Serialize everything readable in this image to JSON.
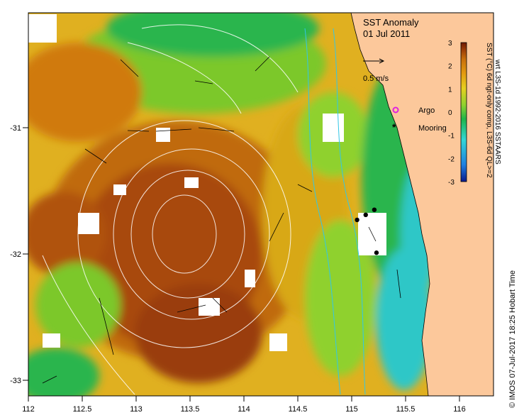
{
  "title": {
    "line1": "SST Anomaly",
    "line2": "01 Jul 2011"
  },
  "scale": {
    "label": "0.5 m/s"
  },
  "legend": {
    "argo": "Argo",
    "mooring": "Mooring"
  },
  "colorbar": {
    "ticks": [
      "3",
      "2",
      "1",
      "0",
      "-1",
      "-2",
      "-3"
    ],
    "label1": "SST (°C) 6d ngt-only comp, L3S-6d QL>=2",
    "label2": "wrt L3S-1d 1992-2016 SSTAARS",
    "colors": [
      "#0b1a8c",
      "#1f7fe0",
      "#33d6d6",
      "#1fb54a",
      "#8fd12f",
      "#e6d020",
      "#e39a10",
      "#c8700c",
      "#9a3c08",
      "#6e1a04"
    ]
  },
  "credit": "© IMOS 07-Jul-2017 18:25 Hobart Time",
  "axes": {
    "x_ticks": [
      "112",
      "112.5",
      "113",
      "113.5",
      "114",
      "114.5",
      "115",
      "115.5",
      "116"
    ],
    "y_ticks": [
      "-31",
      "-32",
      "-33"
    ]
  },
  "colors": {
    "land": "#fcc89b",
    "hot": "#a8480a",
    "warm": "#d07a10",
    "mid": "#e0b020",
    "cool": "#7cc82c",
    "green": "#2ab54e",
    "cyan": "#2ec7c7"
  },
  "moorings": [
    {
      "lon": 115.05,
      "lat": -31.73
    },
    {
      "lon": 115.13,
      "lat": -31.69
    },
    {
      "lon": 115.21,
      "lat": -31.65
    },
    {
      "lon": 115.23,
      "lat": -31.99
    }
  ]
}
